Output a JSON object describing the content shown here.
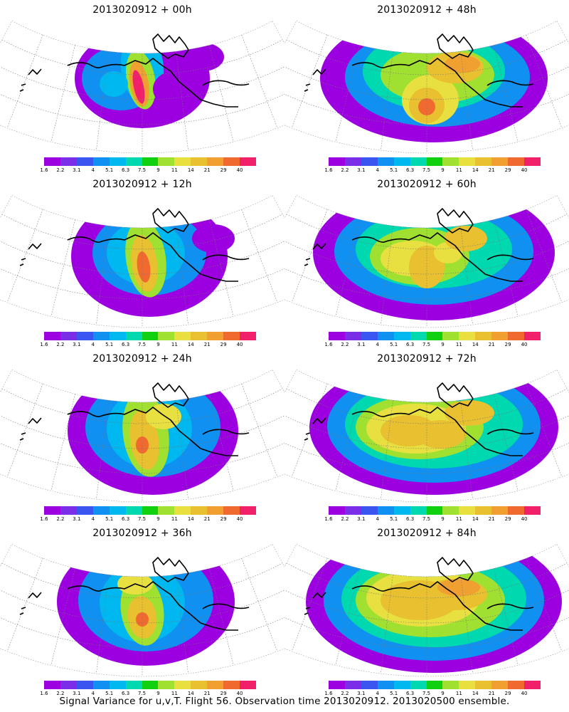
{
  "panels": [
    {
      "title": "2013020912 + 00h"
    },
    {
      "title": "2013020912 + 48h"
    },
    {
      "title": "2013020912 + 12h"
    },
    {
      "title": "2013020912 + 60h"
    },
    {
      "title": "2013020912 + 24h"
    },
    {
      "title": "2013020912 + 72h"
    },
    {
      "title": "2013020912 + 36h"
    },
    {
      "title": "2013020912 + 84h"
    }
  ],
  "colorbar": {
    "ticks": [
      "1.6",
      "2.2",
      "3.1",
      "4",
      "5.1",
      "6.3",
      "7.5",
      "9",
      "11",
      "14",
      "21",
      "29",
      "40"
    ],
    "colors": [
      "#9c00e0",
      "#7a2ee8",
      "#3a55f0",
      "#1090f0",
      "#00b8f0",
      "#00d8b0",
      "#10d010",
      "#a0e030",
      "#e8e040",
      "#e8c030",
      "#f0a030",
      "#f06a30",
      "#f0206a"
    ]
  },
  "footer": "Signal Variance for u,v,T. Flight 56. Observation time 2013020912. 2013020500 ensemble."
}
